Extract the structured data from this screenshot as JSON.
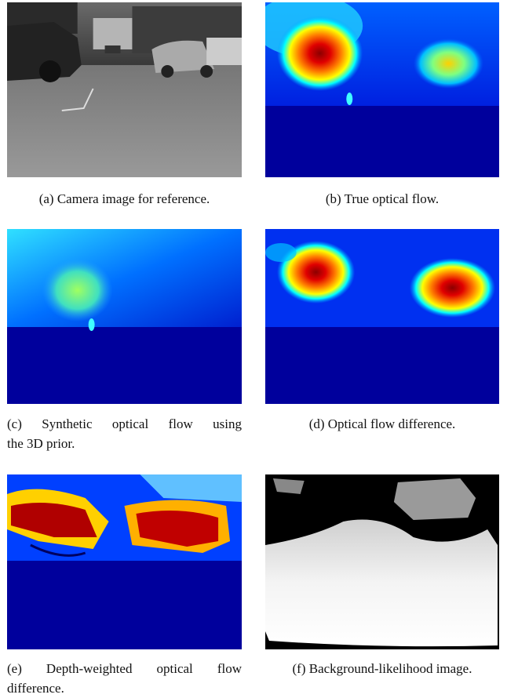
{
  "figure": {
    "panels": [
      {
        "caption_lines": [
          "(a) Camera image for reference."
        ]
      },
      {
        "caption_lines": [
          "(b) True optical flow."
        ]
      },
      {
        "caption_lines": [
          "(c) Synthetic optical flow using",
          "the 3D prior."
        ]
      },
      {
        "caption_lines": [
          "(d) Optical flow difference."
        ]
      },
      {
        "caption_lines": [
          "(e) Depth-weighted optical flow",
          "difference."
        ]
      },
      {
        "caption_lines": [
          "(f) Background-likelihood image."
        ]
      }
    ]
  }
}
